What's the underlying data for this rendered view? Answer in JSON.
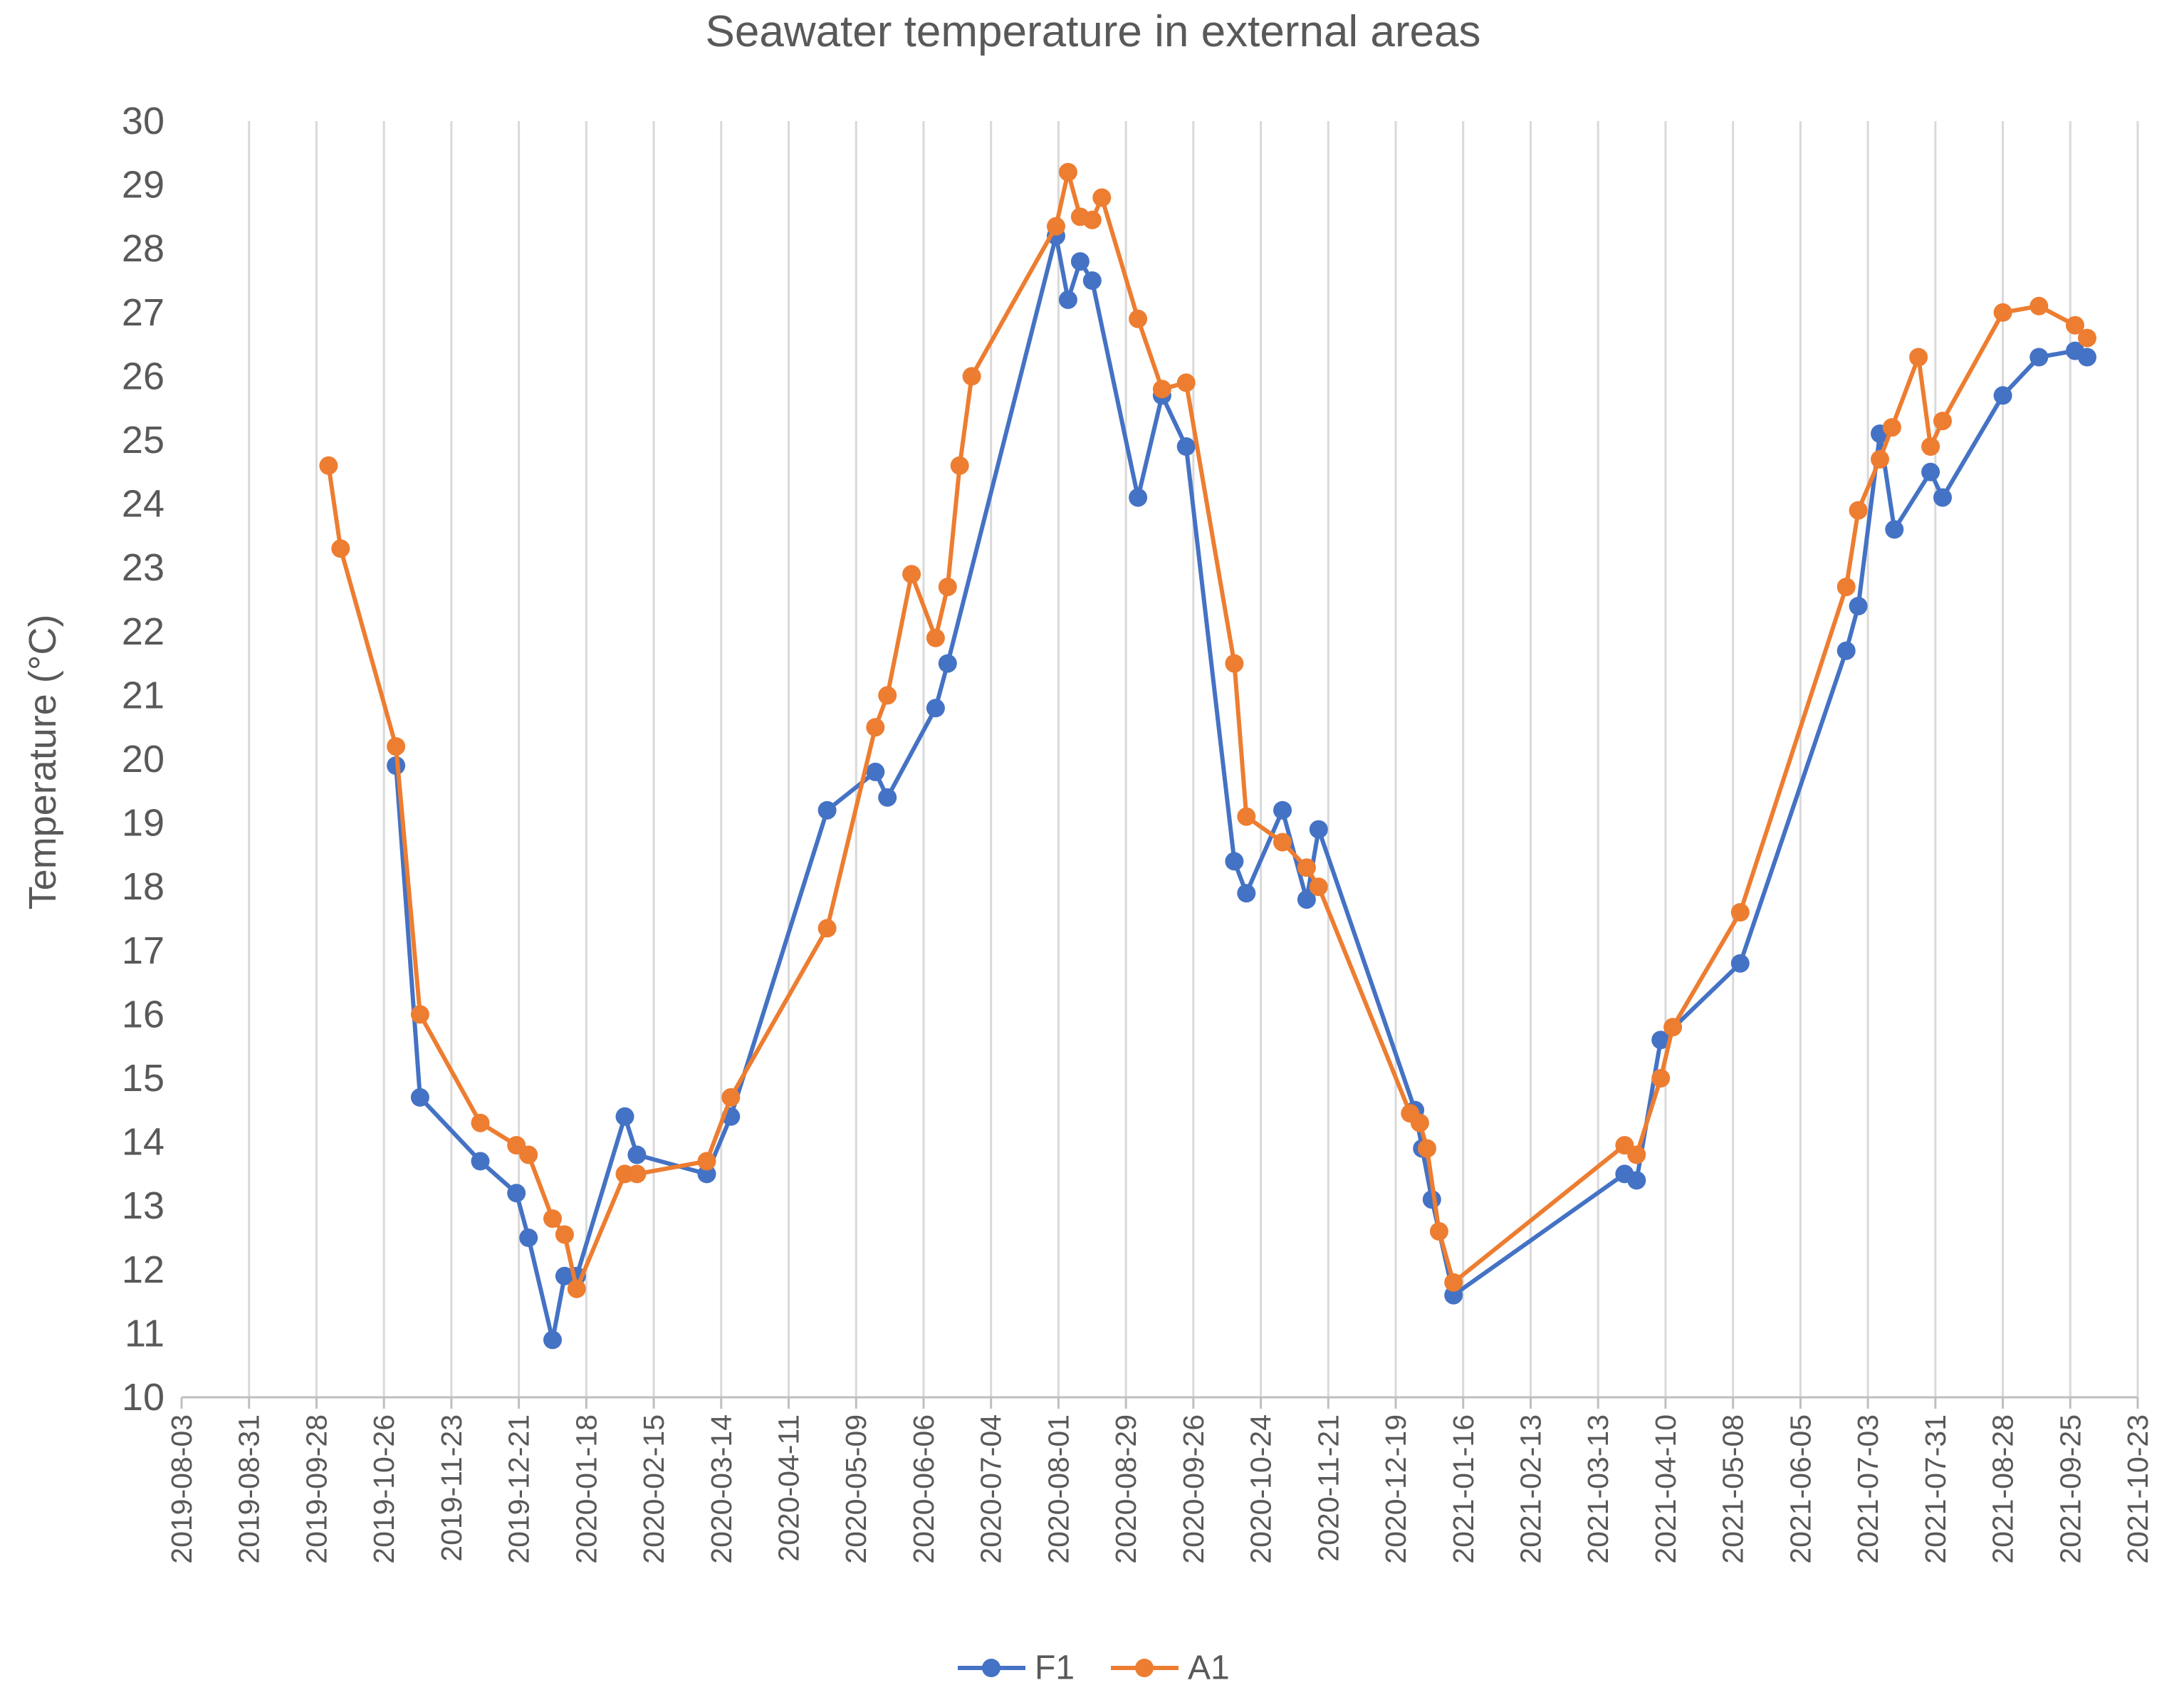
{
  "chart_data": {
    "type": "line",
    "title": "Seawater temperature in external areas",
    "xlabel": "",
    "ylabel": "Temperature (°C)",
    "ylim": [
      10,
      30
    ],
    "y_ticks": [
      10,
      11,
      12,
      13,
      14,
      15,
      16,
      17,
      18,
      19,
      20,
      21,
      22,
      23,
      24,
      25,
      26,
      27,
      28,
      29,
      30
    ],
    "x_ticks": [
      "2019-08-03",
      "2019-08-31",
      "2019-09-28",
      "2019-10-26",
      "2019-11-23",
      "2019-12-21",
      "2020-01-18",
      "2020-02-15",
      "2020-03-14",
      "2020-04-11",
      "2020-05-09",
      "2020-06-06",
      "2020-07-04",
      "2020-08-01",
      "2020-08-29",
      "2020-09-26",
      "2020-10-24",
      "2020-11-21",
      "2020-12-19",
      "2021-01-16",
      "2021-02-13",
      "2021-03-13",
      "2021-04-10",
      "2021-05-08",
      "2021-06-05",
      "2021-07-03",
      "2021-07-31",
      "2021-08-28",
      "2021-09-25",
      "2021-10-23"
    ],
    "xlim_days": [
      0,
      812
    ],
    "grid": true,
    "legend_position": "bottom",
    "series": [
      {
        "name": "F1",
        "color": "#4472C4",
        "points": [
          [
            89,
            19.9
          ],
          [
            99,
            14.7
          ],
          [
            124,
            13.7
          ],
          [
            139,
            13.2
          ],
          [
            144,
            12.5
          ],
          [
            154,
            10.9
          ],
          [
            159,
            11.9
          ],
          [
            164,
            11.9
          ],
          [
            184,
            14.4
          ],
          [
            189,
            13.8
          ],
          [
            218,
            13.5
          ],
          [
            228,
            14.4
          ],
          [
            268,
            19.2
          ],
          [
            288,
            19.8
          ],
          [
            293,
            19.4
          ],
          [
            313,
            20.8
          ],
          [
            318,
            21.5
          ],
          [
            363,
            28.2
          ],
          [
            368,
            27.2
          ],
          [
            373,
            27.8
          ],
          [
            378,
            27.5
          ],
          [
            397,
            24.1
          ],
          [
            407,
            25.7
          ],
          [
            417,
            24.9
          ],
          [
            437,
            18.4
          ],
          [
            442,
            17.9
          ],
          [
            457,
            19.2
          ],
          [
            467,
            17.8
          ],
          [
            472,
            18.9
          ],
          [
            512,
            14.5
          ],
          [
            515,
            13.9
          ],
          [
            519,
            13.1
          ],
          [
            528,
            11.6
          ],
          [
            599,
            13.5
          ],
          [
            604,
            13.4
          ],
          [
            614,
            15.6
          ],
          [
            647,
            16.8
          ],
          [
            691,
            21.7
          ],
          [
            696,
            22.4
          ],
          [
            705,
            25.1
          ],
          [
            711,
            23.6
          ],
          [
            726,
            24.5
          ],
          [
            731,
            24.1
          ],
          [
            756,
            25.7
          ],
          [
            771,
            26.3
          ],
          [
            786,
            26.4
          ],
          [
            791,
            26.3
          ]
        ]
      },
      {
        "name": "A1",
        "color": "#ED7D31",
        "points": [
          [
            61,
            24.6
          ],
          [
            66,
            23.3
          ],
          [
            89,
            20.2
          ],
          [
            99,
            16.0
          ],
          [
            124,
            14.3
          ],
          [
            139,
            13.95
          ],
          [
            144,
            13.8
          ],
          [
            154,
            12.8
          ],
          [
            159,
            12.55
          ],
          [
            164,
            11.7
          ],
          [
            184,
            13.5
          ],
          [
            189,
            13.5
          ],
          [
            218,
            13.7
          ],
          [
            228,
            14.7
          ],
          [
            268,
            17.35
          ],
          [
            288,
            20.5
          ],
          [
            293,
            21.0
          ],
          [
            303,
            22.9
          ],
          [
            313,
            21.9
          ],
          [
            318,
            22.7
          ],
          [
            323,
            24.6
          ],
          [
            328,
            26.0
          ],
          [
            363,
            28.35
          ],
          [
            368,
            29.2
          ],
          [
            373,
            28.5
          ],
          [
            378,
            28.45
          ],
          [
            382,
            28.8
          ],
          [
            397,
            26.9
          ],
          [
            407,
            25.8
          ],
          [
            417,
            25.9
          ],
          [
            437,
            21.5
          ],
          [
            442,
            19.1
          ],
          [
            457,
            18.7
          ],
          [
            467,
            18.3
          ],
          [
            472,
            18.0
          ],
          [
            510,
            14.45
          ],
          [
            514,
            14.3
          ],
          [
            517,
            13.9
          ],
          [
            522,
            12.6
          ],
          [
            528,
            11.8
          ],
          [
            599,
            13.95
          ],
          [
            604,
            13.8
          ],
          [
            614,
            15.0
          ],
          [
            619,
            15.8
          ],
          [
            647,
            17.6
          ],
          [
            691,
            22.7
          ],
          [
            696,
            23.9
          ],
          [
            705,
            24.7
          ],
          [
            710,
            25.2
          ],
          [
            721,
            26.3
          ],
          [
            726,
            24.9
          ],
          [
            731,
            25.3
          ],
          [
            756,
            27.0
          ],
          [
            771,
            27.1
          ],
          [
            786,
            26.8
          ],
          [
            791,
            26.6
          ]
        ]
      }
    ]
  }
}
